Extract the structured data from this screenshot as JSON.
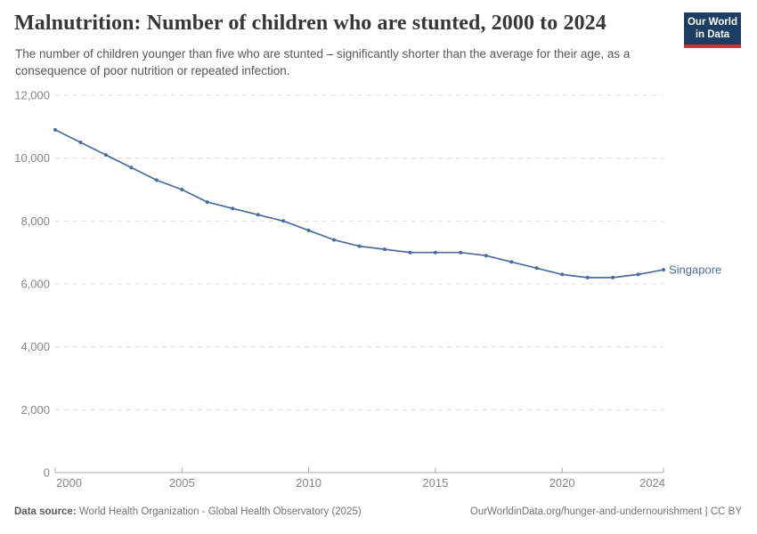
{
  "header": {
    "title": "Malnutrition: Number of children who are stunted, 2000 to 2024",
    "subtitle": "The number of children younger than five who are stunted – significantly shorter than the average for their age, as a consequence of poor nutrition or repeated infection.",
    "logo": {
      "line1": "Our World",
      "line2": "in Data",
      "bg_color": "#1d3d63",
      "accent_color": "#d0342c"
    }
  },
  "chart_data": {
    "type": "line",
    "title": "Malnutrition: Number of children who are stunted, 2000 to 2024",
    "xlabel": "",
    "ylabel": "",
    "x": [
      2000,
      2001,
      2002,
      2003,
      2004,
      2005,
      2006,
      2007,
      2008,
      2009,
      2010,
      2011,
      2012,
      2013,
      2014,
      2015,
      2016,
      2017,
      2018,
      2019,
      2020,
      2021,
      2022,
      2023,
      2024
    ],
    "series": [
      {
        "name": "Singapore",
        "color": "#4C6A9C",
        "values": [
          10900,
          10500,
          10100,
          9700,
          9300,
          9000,
          8600,
          8400,
          8200,
          8000,
          7700,
          7400,
          7200,
          7100,
          7000,
          7000,
          7000,
          6900,
          6700,
          6500,
          6300,
          6200,
          6200,
          6300,
          6450
        ]
      }
    ],
    "xlim": [
      2000,
      2024
    ],
    "ylim": [
      0,
      12000
    ],
    "yticks": [
      0,
      2000,
      4000,
      6000,
      8000,
      10000,
      12000
    ],
    "xticks": [
      2000,
      2005,
      2010,
      2015,
      2020,
      2024
    ],
    "grid": "horizontal-dashed",
    "legend_position": "end-of-line-label",
    "marker": "dot"
  },
  "footer": {
    "datasource_label": "Data source:",
    "datasource_value": "World Health Organization - Global Health Observatory (2025)",
    "url_license": "OurWorldinData.org/hunger-and-undernourishment | CC BY"
  }
}
